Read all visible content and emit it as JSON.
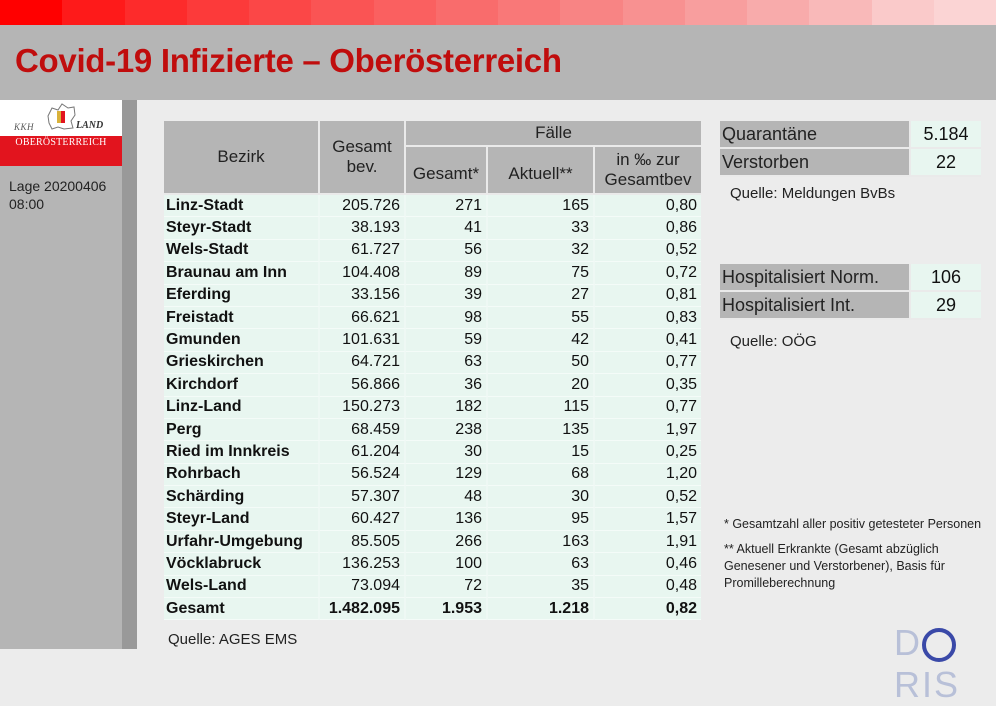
{
  "header": {
    "title": "Covid-19 Infizierte – Oberösterreich",
    "gradient_colors": [
      "#ff0000",
      "#fe1a1a",
      "#fd2b2b",
      "#fc3a3a",
      "#fb4747",
      "#fa5454",
      "#fa6060",
      "#f96c6c",
      "#f97878",
      "#f88484",
      "#f89191",
      "#f89e9e",
      "#f8abab",
      "#f9b9b9",
      "#facaca",
      "#fbd4d4"
    ]
  },
  "sidebar": {
    "logo": {
      "kkh": "KKH",
      "land": "LAND",
      "region": "OBERÖSTERREICH"
    },
    "lage_label": "Lage 20200406",
    "lage_time": "08:00"
  },
  "table": {
    "headers": {
      "bezirk": "Bezirk",
      "gesamtbev_line1": "Gesamt",
      "gesamtbev_line2": "bev.",
      "faelle": "Fälle",
      "gesamt": "Gesamt*",
      "aktuell": "Aktuell**",
      "promille_line1": "in ‰ zur",
      "promille_line2": "Gesamtbev"
    },
    "rows": [
      {
        "bezirk": "Linz-Stadt",
        "bev": "205.726",
        "gesamt": "271",
        "aktuell": "165",
        "promille": "0,80"
      },
      {
        "bezirk": "Steyr-Stadt",
        "bev": "38.193",
        "gesamt": "41",
        "aktuell": "33",
        "promille": "0,86"
      },
      {
        "bezirk": "Wels-Stadt",
        "bev": "61.727",
        "gesamt": "56",
        "aktuell": "32",
        "promille": "0,52"
      },
      {
        "bezirk": "Braunau am Inn",
        "bev": "104.408",
        "gesamt": "89",
        "aktuell": "75",
        "promille": "0,72"
      },
      {
        "bezirk": "Eferding",
        "bev": "33.156",
        "gesamt": "39",
        "aktuell": "27",
        "promille": "0,81"
      },
      {
        "bezirk": "Freistadt",
        "bev": "66.621",
        "gesamt": "98",
        "aktuell": "55",
        "promille": "0,83"
      },
      {
        "bezirk": "Gmunden",
        "bev": "101.631",
        "gesamt": "59",
        "aktuell": "42",
        "promille": "0,41"
      },
      {
        "bezirk": "Grieskirchen",
        "bev": "64.721",
        "gesamt": "63",
        "aktuell": "50",
        "promille": "0,77"
      },
      {
        "bezirk": "Kirchdorf",
        "bev": "56.866",
        "gesamt": "36",
        "aktuell": "20",
        "promille": "0,35"
      },
      {
        "bezirk": "Linz-Land",
        "bev": "150.273",
        "gesamt": "182",
        "aktuell": "115",
        "promille": "0,77"
      },
      {
        "bezirk": "Perg",
        "bev": "68.459",
        "gesamt": "238",
        "aktuell": "135",
        "promille": "1,97"
      },
      {
        "bezirk": "Ried im Innkreis",
        "bev": "61.204",
        "gesamt": "30",
        "aktuell": "15",
        "promille": "0,25"
      },
      {
        "bezirk": "Rohrbach",
        "bev": "56.524",
        "gesamt": "129",
        "aktuell": "68",
        "promille": "1,20"
      },
      {
        "bezirk": "Schärding",
        "bev": "57.307",
        "gesamt": "48",
        "aktuell": "30",
        "promille": "0,52"
      },
      {
        "bezirk": "Steyr-Land",
        "bev": "60.427",
        "gesamt": "136",
        "aktuell": "95",
        "promille": "1,57"
      },
      {
        "bezirk": "Urfahr-Umgebung",
        "bev": "85.505",
        "gesamt": "266",
        "aktuell": "163",
        "promille": "1,91"
      },
      {
        "bezirk": "Vöcklabruck",
        "bev": "136.253",
        "gesamt": "100",
        "aktuell": "63",
        "promille": "0,46"
      },
      {
        "bezirk": "Wels-Land",
        "bev": "73.094",
        "gesamt": "72",
        "aktuell": "35",
        "promille": "0,48"
      }
    ],
    "total": {
      "bezirk": "Gesamt",
      "bev": "1.482.095",
      "gesamt": "1.953",
      "aktuell": "1.218",
      "promille": "0,82"
    },
    "source": "Quelle: AGES EMS"
  },
  "quarantine_box": {
    "rows": [
      {
        "label": "Quarantäne",
        "value": "5.184"
      },
      {
        "label": "Verstorben",
        "value": "22"
      }
    ],
    "source": "Quelle: Meldungen BvBs"
  },
  "hospital_box": {
    "rows": [
      {
        "label": "Hospitalisiert Norm.",
        "value": "106"
      },
      {
        "label": "Hospitalisiert Int.",
        "value": "29"
      }
    ],
    "source": "Quelle: OÖG"
  },
  "footnotes": {
    "note1": "* Gesamtzahl aller positiv getesteter Personen",
    "note2": "** Aktuell Erkrankte (Gesamt abzüglich Genesener und Verstorbener), Basis für Promilleberechnung"
  },
  "footer_logo": {
    "d": "D",
    "ris": "RIS"
  }
}
